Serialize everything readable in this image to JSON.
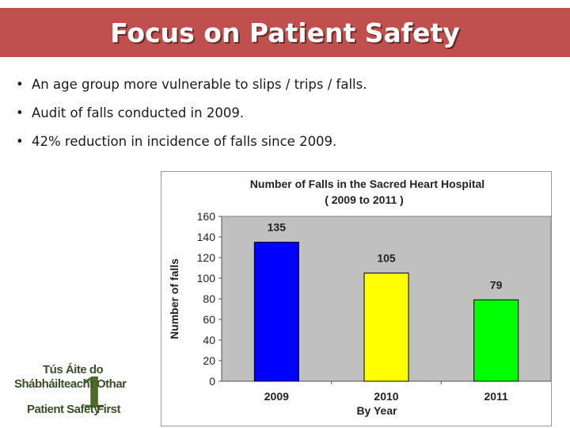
{
  "slide": {
    "title": "Focus on Patient Safety",
    "bullets": [
      "An age group more vulnerable to slips / trips / falls.",
      "Audit of falls conducted in 2009.",
      "42% reduction in incidence of falls since 2009."
    ],
    "bullet_glyph": "•"
  },
  "logo": {
    "line1": "Tús Áite do",
    "line2a": "Shábháilteacht",
    "line2b": "Othar",
    "line3a": "Patient Safety",
    "line3b": "First",
    "numeral": "1"
  },
  "chart_data": {
    "type": "bar",
    "title": "Number of Falls in the Sacred Heart Hospital",
    "subtitle": "( 2009 to 2011 )",
    "xlabel": "By Year",
    "ylabel": "Number of falls",
    "categories": [
      "2009",
      "2010",
      "2011"
    ],
    "values": [
      135,
      105,
      79
    ],
    "data_labels": [
      "135",
      "105",
      "79"
    ],
    "bar_colors": [
      "#0000ff",
      "#ffff00",
      "#00ff00"
    ],
    "ylim": [
      0,
      160
    ],
    "yticks": [
      "0",
      "20",
      "40",
      "60",
      "80",
      "100",
      "120",
      "140",
      "160"
    ],
    "plot_background": "#c0c0c0",
    "grid": false,
    "legend": "none"
  }
}
